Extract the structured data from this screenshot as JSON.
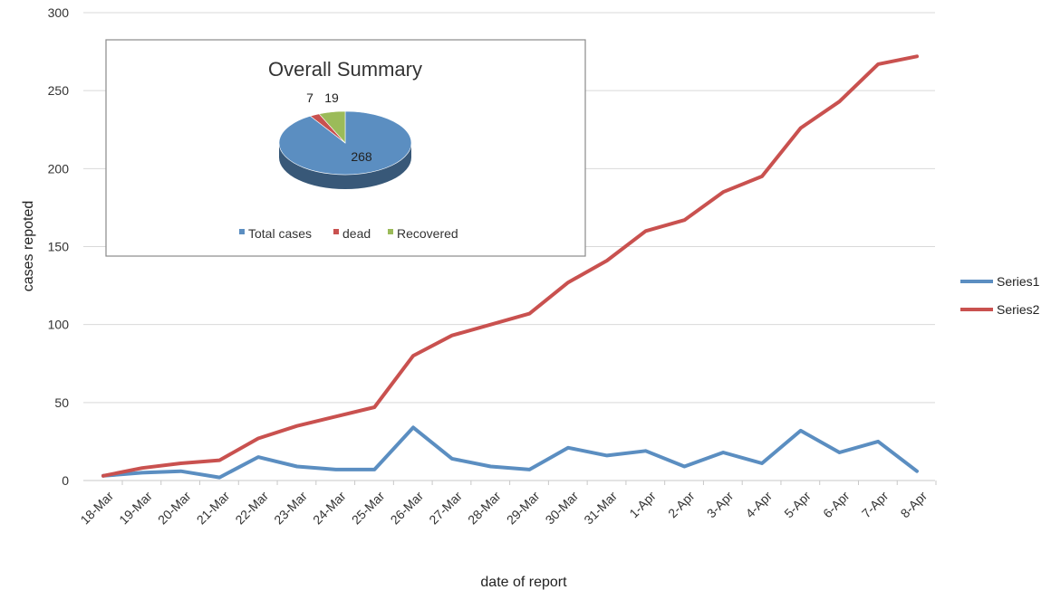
{
  "chart_data": [
    {
      "type": "line",
      "title": "",
      "xlabel": "date of  report",
      "ylabel": "cases repoted",
      "ylim": [
        0,
        300
      ],
      "yticks": [
        0,
        50,
        100,
        150,
        200,
        250,
        300
      ],
      "grid": true,
      "legend_position": "right",
      "categories": [
        "18-Mar",
        "19-Mar",
        "20-Mar",
        "21-Mar",
        "22-Mar",
        "23-Mar",
        "24-Mar",
        "25-Mar",
        "26-Mar",
        "27-Mar",
        "28-Mar",
        "29-Mar",
        "30-Mar",
        "31-Mar",
        "1-Apr",
        "2-Apr",
        "3-Apr",
        "4-Apr",
        "5-Apr",
        "6-Apr",
        "7-Apr",
        "8-Apr"
      ],
      "series": [
        {
          "name": "Series1",
          "color": "#5b8ec1",
          "values": [
            3,
            5,
            6,
            2,
            15,
            9,
            7,
            7,
            34,
            14,
            9,
            7,
            21,
            16,
            19,
            9,
            18,
            11,
            32,
            18,
            25,
            6
          ]
        },
        {
          "name": "Series2",
          "color": "#c9514f",
          "values": [
            3,
            8,
            11,
            13,
            27,
            35,
            41,
            47,
            80,
            93,
            100,
            107,
            127,
            141,
            160,
            167,
            185,
            195,
            226,
            243,
            267,
            272
          ]
        }
      ]
    },
    {
      "type": "pie",
      "title": "Overall Summary",
      "legend_position": "bottom",
      "slices": [
        {
          "label": "Total cases",
          "value": 268,
          "color": "#5b8ec1"
        },
        {
          "label": "dead",
          "value": 7,
          "color": "#c9514f"
        },
        {
          "label": "Recovered",
          "value": 19,
          "color": "#9bbb59"
        }
      ]
    }
  ]
}
